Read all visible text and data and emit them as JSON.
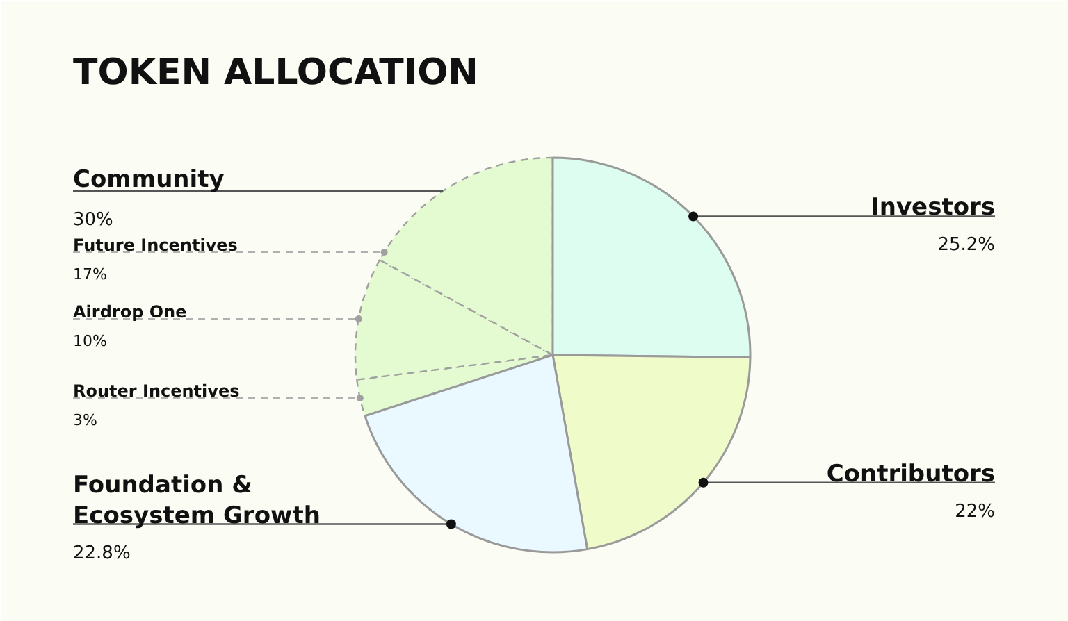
{
  "chart_data": {
    "type": "pie",
    "title": "TOKEN ALLOCATION",
    "categories": [
      "Investors",
      "Contributors",
      "Foundation & Ecosystem Growth",
      "Router Incentives",
      "Airdrop One",
      "Future Incentives"
    ],
    "values": [
      25.2,
      22,
      22.8,
      3,
      10,
      17
    ],
    "colors": [
      "#dcfdef",
      "#effcca",
      "#eaf8ff",
      "#e4fbd2",
      "#e4fbd2",
      "#e4fbd2"
    ],
    "value_labels": [
      "25.2%",
      "22%",
      "22.8%",
      "3%",
      "10%",
      "17%"
    ],
    "annotations": [
      "Community",
      "30%"
    ]
  }
}
